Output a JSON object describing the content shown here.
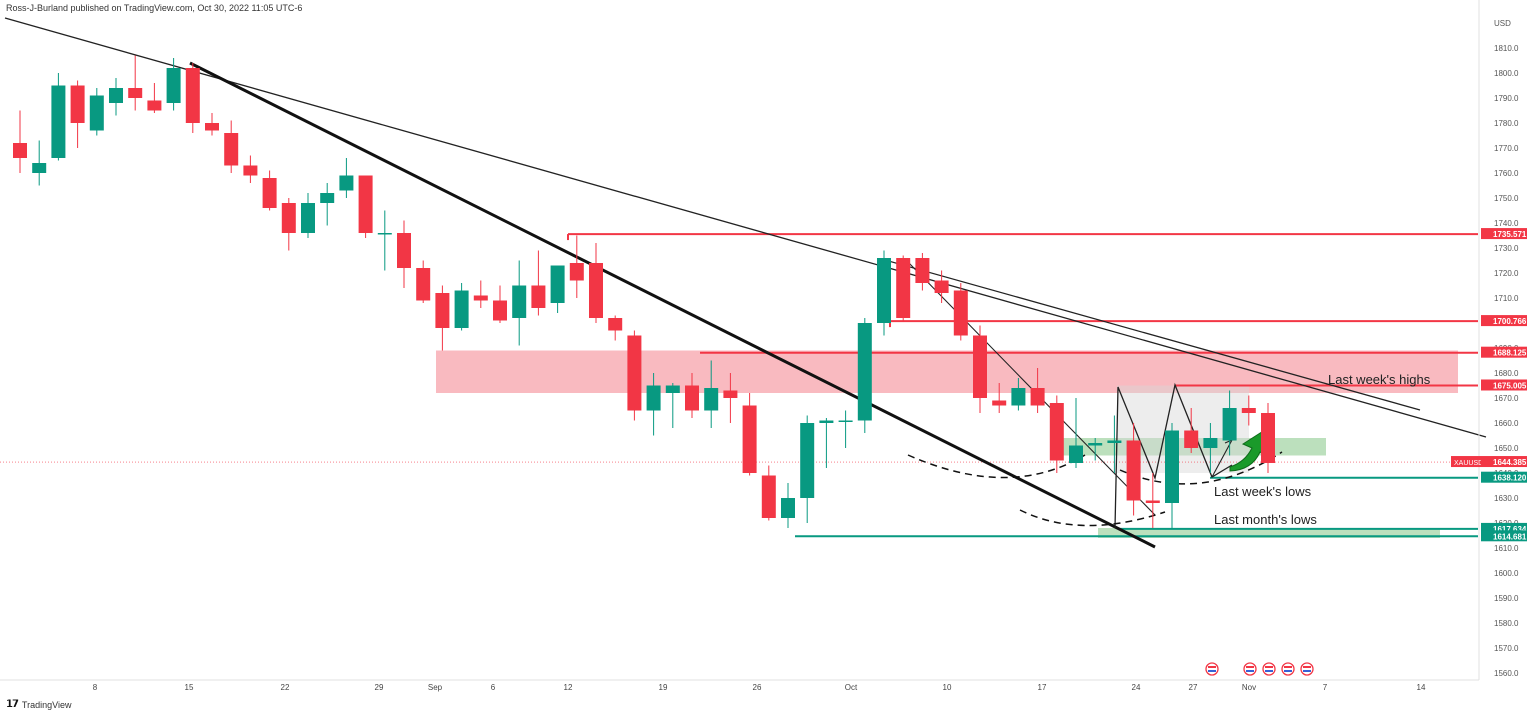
{
  "header": {
    "publisher": "Ross-J-Burland published on TradingView.com, Oct 30, 2022 11:05 UTC-6"
  },
  "footer": {
    "brand": "TradingView"
  },
  "chart_data": {
    "type": "candlestick",
    "symbol": "XAUUSD",
    "currency": "USD",
    "ylim": [
      1556,
      1818
    ],
    "y_ticks": [
      1560,
      1570,
      1580,
      1590,
      1600,
      1610,
      1620,
      1630,
      1640,
      1650,
      1660,
      1670,
      1680,
      1690,
      1700,
      1710,
      1720,
      1730,
      1740,
      1750,
      1760,
      1770,
      1780,
      1790,
      1800,
      1810
    ],
    "x_tick_labels": [
      "8",
      "15",
      "22",
      "29",
      "Sep",
      "6",
      "12",
      "19",
      "26",
      "Oct",
      "10",
      "17",
      "24",
      "27",
      "Nov",
      "7",
      "14"
    ],
    "price_tags": [
      {
        "label": "1735.571",
        "value": 1735.571,
        "color": "#f23645"
      },
      {
        "label": "1700.766",
        "value": 1700.766,
        "color": "#f23645"
      },
      {
        "label": "1688.125",
        "value": 1688.125,
        "color": "#f23645"
      },
      {
        "label": "1675.005",
        "value": 1675.005,
        "color": "#f23645"
      },
      {
        "label": "1638.120",
        "value": 1638.12,
        "color": "#089981"
      },
      {
        "label": "1617.634",
        "value": 1617.634,
        "color": "#089981"
      },
      {
        "label": "1614.681",
        "value": 1614.681,
        "color": "#089981"
      }
    ],
    "symbol_tag": {
      "label": "XAUUSD",
      "price": "1644.385",
      "value": 1644.385,
      "color": "#f23645"
    },
    "annotations": [
      "Last week's highs",
      "Last week's lows",
      "Last month's lows"
    ],
    "colors": {
      "up": "#089981",
      "down": "#f23645",
      "zone_red": "#f7a3ab",
      "zone_green": "#a5d6a7"
    },
    "candles": [
      {
        "o": 1772,
        "h": 1785,
        "l": 1760,
        "c": 1766
      },
      {
        "o": 1760,
        "h": 1773,
        "l": 1755,
        "c": 1764
      },
      {
        "o": 1766,
        "h": 1800,
        "l": 1765,
        "c": 1795
      },
      {
        "o": 1795,
        "h": 1797,
        "l": 1770,
        "c": 1780
      },
      {
        "o": 1777,
        "h": 1794,
        "l": 1775,
        "c": 1791
      },
      {
        "o": 1788,
        "h": 1798,
        "l": 1783,
        "c": 1794
      },
      {
        "o": 1794,
        "h": 1807,
        "l": 1785,
        "c": 1790
      },
      {
        "o": 1789,
        "h": 1796,
        "l": 1784,
        "c": 1785
      },
      {
        "o": 1788,
        "h": 1806,
        "l": 1785,
        "c": 1802
      },
      {
        "o": 1802,
        "h": 1804,
        "l": 1776,
        "c": 1780
      },
      {
        "o": 1780,
        "h": 1784,
        "l": 1775,
        "c": 1777
      },
      {
        "o": 1776,
        "h": 1781,
        "l": 1760,
        "c": 1763
      },
      {
        "o": 1763,
        "h": 1767,
        "l": 1756,
        "c": 1759
      },
      {
        "o": 1758,
        "h": 1761,
        "l": 1745,
        "c": 1746
      },
      {
        "o": 1748,
        "h": 1750,
        "l": 1729,
        "c": 1736
      },
      {
        "o": 1736,
        "h": 1752,
        "l": 1734,
        "c": 1748
      },
      {
        "o": 1748,
        "h": 1756,
        "l": 1739,
        "c": 1752
      },
      {
        "o": 1753,
        "h": 1766,
        "l": 1750,
        "c": 1759
      },
      {
        "o": 1759,
        "h": 1759,
        "l": 1734,
        "c": 1736
      },
      {
        "o": 1736,
        "h": 1745,
        "l": 1721,
        "c": 1736
      },
      {
        "o": 1736,
        "h": 1741,
        "l": 1714,
        "c": 1722
      },
      {
        "o": 1722,
        "h": 1725,
        "l": 1708,
        "c": 1709
      },
      {
        "o": 1712,
        "h": 1715,
        "l": 1689,
        "c": 1698
      },
      {
        "o": 1698,
        "h": 1716,
        "l": 1697,
        "c": 1713
      },
      {
        "o": 1711,
        "h": 1717,
        "l": 1706,
        "c": 1709
      },
      {
        "o": 1709,
        "h": 1715,
        "l": 1700,
        "c": 1701
      },
      {
        "o": 1702,
        "h": 1725,
        "l": 1691,
        "c": 1715
      },
      {
        "o": 1715,
        "h": 1729,
        "l": 1703,
        "c": 1706
      },
      {
        "o": 1708,
        "h": 1722,
        "l": 1704,
        "c": 1723
      },
      {
        "o": 1724,
        "h": 1735,
        "l": 1710,
        "c": 1717
      },
      {
        "o": 1724,
        "h": 1732,
        "l": 1700,
        "c": 1702
      },
      {
        "o": 1702,
        "h": 1703,
        "l": 1693,
        "c": 1697
      },
      {
        "o": 1695,
        "h": 1697,
        "l": 1661,
        "c": 1665
      },
      {
        "o": 1665,
        "h": 1680,
        "l": 1655,
        "c": 1675
      },
      {
        "o": 1672,
        "h": 1676,
        "l": 1658,
        "c": 1675
      },
      {
        "o": 1675,
        "h": 1680,
        "l": 1662,
        "c": 1665
      },
      {
        "o": 1665,
        "h": 1685,
        "l": 1658,
        "c": 1674
      },
      {
        "o": 1673,
        "h": 1680,
        "l": 1660,
        "c": 1670
      },
      {
        "o": 1667,
        "h": 1672,
        "l": 1639,
        "c": 1640
      },
      {
        "o": 1639,
        "h": 1643,
        "l": 1621,
        "c": 1622
      },
      {
        "o": 1622,
        "h": 1636,
        "l": 1618,
        "c": 1630
      },
      {
        "o": 1630,
        "h": 1663,
        "l": 1620,
        "c": 1660
      },
      {
        "o": 1660,
        "h": 1662,
        "l": 1642,
        "c": 1661
      },
      {
        "o": 1661,
        "h": 1665,
        "l": 1650,
        "c": 1661
      },
      {
        "o": 1661,
        "h": 1702,
        "l": 1656,
        "c": 1700
      },
      {
        "o": 1700,
        "h": 1729,
        "l": 1695,
        "c": 1726
      },
      {
        "o": 1726,
        "h": 1727,
        "l": 1701,
        "c": 1702
      },
      {
        "o": 1726,
        "h": 1728,
        "l": 1713,
        "c": 1716
      },
      {
        "o": 1717,
        "h": 1721,
        "l": 1708,
        "c": 1712
      },
      {
        "o": 1713,
        "h": 1716,
        "l": 1693,
        "c": 1695
      },
      {
        "o": 1695,
        "h": 1699,
        "l": 1664,
        "c": 1670
      },
      {
        "o": 1669,
        "h": 1676,
        "l": 1664,
        "c": 1667
      },
      {
        "o": 1667,
        "h": 1678,
        "l": 1665,
        "c": 1674
      },
      {
        "o": 1674,
        "h": 1682,
        "l": 1664,
        "c": 1667
      },
      {
        "o": 1668,
        "h": 1671,
        "l": 1640,
        "c": 1645
      },
      {
        "o": 1644,
        "h": 1670,
        "l": 1642,
        "c": 1651
      },
      {
        "o": 1651,
        "h": 1654,
        "l": 1645,
        "c": 1652
      },
      {
        "o": 1652,
        "h": 1663,
        "l": 1640,
        "c": 1653
      },
      {
        "o": 1653,
        "h": 1660,
        "l": 1623,
        "c": 1629
      },
      {
        "o": 1629,
        "h": 1640,
        "l": 1618,
        "c": 1628
      },
      {
        "o": 1628,
        "h": 1660,
        "l": 1618,
        "c": 1657
      },
      {
        "o": 1657,
        "h": 1666,
        "l": 1648,
        "c": 1650
      },
      {
        "o": 1650,
        "h": 1660,
        "l": 1640,
        "c": 1654
      },
      {
        "o": 1653,
        "h": 1673,
        "l": 1647,
        "c": 1666
      },
      {
        "o": 1666,
        "h": 1671,
        "l": 1659,
        "c": 1664
      },
      {
        "o": 1664,
        "h": 1668,
        "l": 1640,
        "c": 1644
      }
    ]
  }
}
